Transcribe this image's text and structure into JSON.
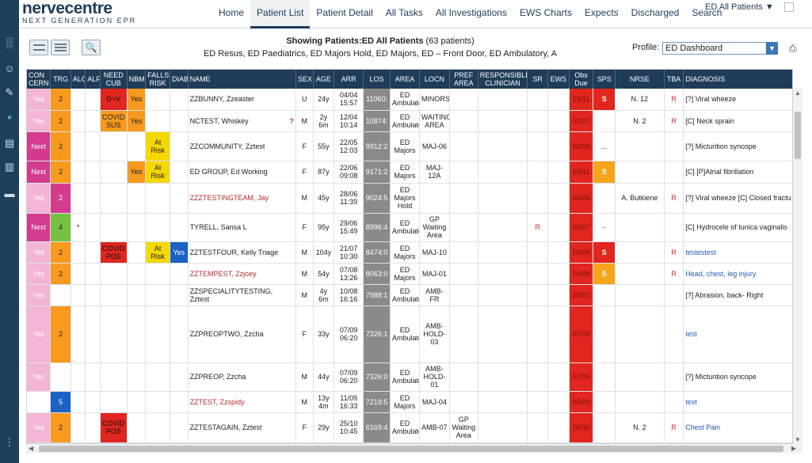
{
  "logo": {
    "line1": "nervecentre",
    "line2": "NEXT GENERATION EPR"
  },
  "nav": {
    "items": [
      {
        "label": "Home"
      },
      {
        "label": "Patient List",
        "active": true
      },
      {
        "label": "Patient Detail"
      },
      {
        "label": "All Tasks"
      },
      {
        "label": "All Investigations"
      },
      {
        "label": "EWS Charts"
      },
      {
        "label": "Expects"
      },
      {
        "label": "Discharged"
      },
      {
        "label": "Search"
      }
    ],
    "ed_selector": "ED All Patients ▼"
  },
  "rail_icons": [
    "ward-icon",
    "user-icon",
    "pen-icon",
    "network-icon",
    "archive-icon",
    "clipboard-icon",
    "bed-icon",
    "more-icon"
  ],
  "subheader": {
    "showing_bold": "Showing Patients:ED All Patients",
    "showing_count": " (63 patients)",
    "areas": "ED Resus, ED Paediatrics, ED Majors Hold, ED Majors, ED – Front Door, ED Ambulatory, A",
    "profile_label": "Profile:",
    "profile_value": "ED Dashboard"
  },
  "columns": [
    "CON CERN",
    "TRG",
    "ALC",
    "ALF",
    "NEED CUB",
    "NBM",
    "FALLS RISK",
    "DIAB",
    "NAME",
    "SEX",
    "AGE",
    "ARR",
    "LOS",
    "AREA",
    "LOCN",
    "PREF AREA",
    "RESPONSIBLE CLINICIAN",
    "SR",
    "EWS",
    "Obs Due",
    "SPS",
    "NRSE",
    "TBA",
    "DIAGNOSIS"
  ],
  "rows": [
    {
      "concern": "Yes",
      "concern_c": "pink",
      "trg": "2",
      "trg_c": "orange",
      "alc": "",
      "need": "D+V",
      "need_c": "red",
      "nbm": "Yes",
      "nbm_c": "orange",
      "falls": "",
      "falls_c": "",
      "diab": "",
      "diab_c": "",
      "name": "ZZBUNNY, Zzeaster",
      "name_c": "",
      "icon": "",
      "sex": "U",
      "age": "24y",
      "arr": "04/04 15:57",
      "los": "11060:",
      "area": "ED Ambulato",
      "locn": "MINORS",
      "pref": "",
      "sr": "",
      "obs": "23/11",
      "sps": "S",
      "sps_c": "sps-red",
      "nrse": "N. 12",
      "tba": "R",
      "dx": "[?] Viral wheeze",
      "dx_c": "",
      "h": 27
    },
    {
      "concern": "Yes",
      "concern_c": "pink",
      "trg": "2",
      "trg_c": "orange",
      "alc": "",
      "need": "COVID SUS",
      "need_c": "orange",
      "nbm": "Yes",
      "nbm_c": "orange",
      "falls": "",
      "falls_c": "",
      "diab": "",
      "diab_c": "",
      "name": "NCTEST, Whiskey",
      "name_c": "",
      "icon": "?",
      "sex": "M",
      "age": "2y 6m",
      "arr": "12/04 10:14",
      "los": "10874:",
      "area": "ED Ambulato",
      "locn": "WAITING AREA",
      "pref": "",
      "sr": "",
      "obs": "01/07",
      "sps": "",
      "sps_c": "",
      "nrse": "N. 2",
      "tba": "R",
      "dx": "[C] Neck sprain",
      "dx_c": "",
      "h": 27
    },
    {
      "concern": "Next",
      "concern_c": "magenta",
      "trg": "2",
      "trg_c": "orange",
      "alc": "",
      "need": "",
      "need_c": "",
      "nbm": "",
      "nbm_c": "",
      "falls": "At Risk",
      "falls_c": "yellow",
      "diab": "",
      "diab_c": "",
      "name": "ZZCOMMUNITY, Zztest",
      "name_c": "",
      "icon": "",
      "sex": "F",
      "age": "55y",
      "arr": "22/05 12:03",
      "los": "9912:2",
      "area": "ED Majors",
      "locn": "MAJ-06",
      "pref": "",
      "sr": "",
      "obs": "22/06",
      "sps": "...",
      "sps_c": "",
      "nrse": "",
      "tba": "",
      "dx": "[?] Micturition syncope",
      "dx_c": "",
      "h": 37
    },
    {
      "concern": "Next",
      "concern_c": "magenta",
      "trg": "2",
      "trg_c": "orange",
      "alc": "",
      "need": "",
      "need_c": "",
      "nbm": "Yes",
      "nbm_c": "orange",
      "falls": "At Risk",
      "falls_c": "yellow",
      "diab": "",
      "diab_c": "",
      "name": "ED GROUP, Ed Working",
      "name_c": "",
      "icon": "",
      "sex": "F",
      "age": "87y",
      "arr": "22/06 09:08",
      "los": "9171:2",
      "area": "ED Majors",
      "locn": "MAJ-12A",
      "pref": "",
      "sr": "",
      "obs": "09/11",
      "sps": "S",
      "sps_c": "sps-amber",
      "nrse": "",
      "tba": "",
      "dx": "[C] [P]Atrial fibrillation",
      "dx_c": "",
      "h": 28
    },
    {
      "concern": "Yes",
      "concern_c": "pink",
      "trg": "2",
      "trg_c": "magenta",
      "alc": "",
      "need": "",
      "need_c": "",
      "nbm": "",
      "nbm_c": "",
      "falls": "",
      "falls_c": "",
      "diab": "",
      "diab_c": "",
      "name": "ZZZTESTINGTEAM, Jay",
      "name_c": "name-red",
      "icon": "",
      "sex": "M",
      "age": "45y",
      "arr": "28/06 11:39",
      "los": "9024:5",
      "area": "ED Majors Hold",
      "locn": "",
      "pref": "",
      "sr": "",
      "obs": "06/06",
      "sps": "",
      "sps_c": "",
      "nrse": "A. Butkiene",
      "tba": "R",
      "dx": "[?] Viral wheeze [C] Closed fractu",
      "dx_c": "",
      "h": 38
    },
    {
      "concern": "Next",
      "concern_c": "magenta",
      "trg": "4",
      "trg_c": "green",
      "alc": "*",
      "need": "",
      "need_c": "",
      "nbm": "",
      "nbm_c": "",
      "falls": "",
      "falls_c": "",
      "diab": "",
      "diab_c": "",
      "name": "TYRELL, Sansa L",
      "name_c": "",
      "icon": "",
      "sex": "F",
      "age": "95y",
      "arr": "29/06 15:49",
      "los": "8996:4",
      "area": "ED Ambulato",
      "locn": "GP Waiting Area",
      "pref": "",
      "sr": "R",
      "obs": "03/07",
      "sps": "-",
      "sps_c": "",
      "nrse": "",
      "tba": "",
      "dx": "[C] Hydrocele of tunica vaginalis",
      "dx_c": "",
      "h": 36
    },
    {
      "concern": "Yes",
      "concern_c": "pink",
      "trg": "2",
      "trg_c": "orange",
      "alc": "",
      "need": "COVID POS",
      "need_c": "red",
      "nbm": "",
      "nbm_c": "",
      "falls": "At Risk",
      "falls_c": "yellow",
      "diab": "Yes",
      "diab_c": "blue",
      "name": "ZZTESTFOUR, Kelly Triage",
      "name_c": "",
      "icon": "",
      "sex": "M",
      "age": "104y",
      "arr": "21/07 10:30",
      "los": "8474:0",
      "area": "ED Majors",
      "locn": "MAJ-10",
      "pref": "",
      "sr": "",
      "obs": "16/04",
      "sps": "S",
      "sps_c": "sps-red",
      "nrse": "",
      "tba": "R",
      "dx": "testestest",
      "dx_c": "dx-blue",
      "h": 27
    },
    {
      "concern": "Yes",
      "concern_c": "pink",
      "trg": "2",
      "trg_c": "orange",
      "alc": "",
      "need": "",
      "need_c": "",
      "nbm": "",
      "nbm_c": "",
      "falls": "",
      "falls_c": "",
      "diab": "",
      "diab_c": "",
      "name": "ZZTEMPEST, Zzjoey",
      "name_c": "name-red",
      "icon": "",
      "sex": "M",
      "age": "54y",
      "arr": "07/08 13:26",
      "los": "8063:0",
      "area": "ED Majors",
      "locn": "MAJ-01",
      "pref": "",
      "sr": "",
      "obs": "24/08",
      "sps": "S",
      "sps_c": "sps-amber",
      "nrse": "",
      "tba": "R",
      "dx": "Head, chest, leg injury.",
      "dx_c": "dx-blue",
      "h": 27
    },
    {
      "concern": "Yes",
      "concern_c": "pink",
      "trg": "",
      "trg_c": "",
      "alc": "",
      "need": "",
      "need_c": "",
      "nbm": "",
      "nbm_c": "",
      "falls": "",
      "falls_c": "",
      "diab": "",
      "diab_c": "",
      "name": "ZZSPECIALITYTESTING, Zztest",
      "name_c": "",
      "icon": "",
      "sex": "M",
      "age": "4y 6m",
      "arr": "10/08 16:16",
      "los": "7988:1",
      "area": "ED Ambulato",
      "locn": "AMB-FR",
      "pref": "",
      "sr": "",
      "obs": "29/01",
      "sps": "",
      "sps_c": "",
      "nrse": "",
      "tba": "",
      "dx": "[?] Abrasion, back- Right",
      "dx_c": "",
      "h": 27
    },
    {
      "concern": "Yes",
      "concern_c": "pink",
      "trg": "2",
      "trg_c": "orange",
      "alc": "",
      "need": "",
      "need_c": "",
      "nbm": "",
      "nbm_c": "",
      "falls": "",
      "falls_c": "",
      "diab": "",
      "diab_c": "",
      "name": "ZZPREOPTWO, Zzcha",
      "name_c": "",
      "icon": "",
      "sex": "F",
      "age": "33y",
      "arr": "07/09 06:20",
      "los": "7326:1",
      "area": "ED Ambulato",
      "locn": "AMB-HOLD-03",
      "pref": "",
      "sr": "",
      "obs": "07/09",
      "sps": "",
      "sps_c": "",
      "nrse": "",
      "tba": "",
      "dx": "test",
      "dx_c": "dx-blue",
      "h": 72
    },
    {
      "concern": "Yes",
      "concern_c": "pink",
      "trg": "",
      "trg_c": "",
      "alc": "",
      "need": "",
      "need_c": "",
      "nbm": "",
      "nbm_c": "",
      "falls": "",
      "falls_c": "",
      "diab": "",
      "diab_c": "",
      "name": "ZZPREOP, Zzcha",
      "name_c": "",
      "icon": "",
      "sex": "M",
      "age": "44y",
      "arr": "07/09 06:20",
      "los": "7326:0",
      "area": "ED Ambulato",
      "locn": "AMB-HOLD-01",
      "pref": "",
      "sr": "",
      "obs": "07/09",
      "sps": "",
      "sps_c": "",
      "nrse": "",
      "tba": "",
      "dx": "[?] Micturition syncope",
      "dx_c": "",
      "h": 36
    },
    {
      "concern": "",
      "concern_c": "",
      "trg": "5",
      "trg_c": "blue",
      "alc": "",
      "need": "",
      "need_c": "",
      "nbm": "",
      "nbm_c": "",
      "falls": "",
      "falls_c": "",
      "diab": "",
      "diab_c": "",
      "name": "ZZTEST, Zzspidy",
      "name_c": "name-red",
      "icon": "",
      "sex": "M",
      "age": "13y 4m",
      "arr": "11/09 16:33",
      "los": "7219:5",
      "area": "ED Majors",
      "locn": "MAJ-04",
      "pref": "",
      "sr": "",
      "obs": "05/03",
      "sps": "",
      "sps_c": "",
      "nrse": "",
      "tba": "",
      "dx": "test",
      "dx_c": "dx-blue",
      "h": 27
    },
    {
      "concern": "Yes",
      "concern_c": "pink",
      "trg": "2",
      "trg_c": "orange",
      "alc": "",
      "need": "COVID POS",
      "need_c": "red",
      "nbm": "",
      "nbm_c": "",
      "falls": "",
      "falls_c": "",
      "diab": "",
      "diab_c": "",
      "name": "ZZTESTAGAIN, Zztest",
      "name_c": "",
      "icon": "",
      "sex": "F",
      "age": "29y",
      "arr": "25/10 10:45",
      "los": "6169:4",
      "area": "ED Ambulato",
      "locn": "AMB-07",
      "pref": "GP Waiting Area",
      "sr": "",
      "obs": "25/10",
      "sps": "",
      "sps_c": "",
      "nrse": "N. 2",
      "tba": "R",
      "dx": "Chest Pain",
      "dx_c": "dx-blue",
      "h": 38
    }
  ]
}
